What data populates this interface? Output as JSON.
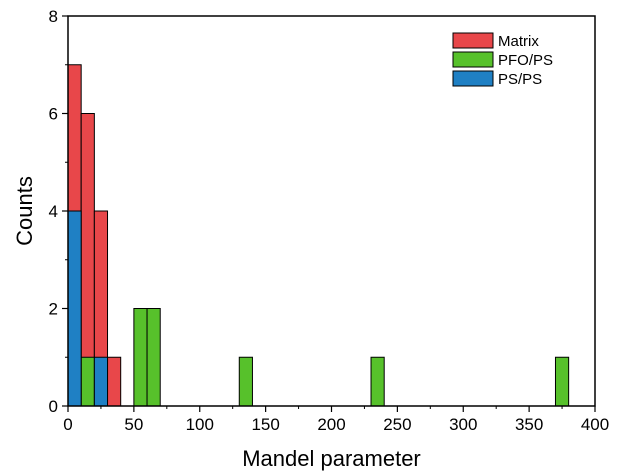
{
  "chart_data": {
    "type": "bar",
    "title": "",
    "xlabel": "Mandel parameter",
    "ylabel": "Counts",
    "xlim": [
      0,
      400
    ],
    "ylim": [
      0,
      8
    ],
    "x_ticks": [
      0,
      50,
      100,
      150,
      200,
      250,
      300,
      350,
      400
    ],
    "y_ticks": [
      0,
      2,
      4,
      6,
      8
    ],
    "bin_width": 10,
    "legend_position": "top-right",
    "grid": false,
    "series": [
      {
        "name": "Matrix",
        "color": "#e8474a",
        "bars": [
          {
            "x": 5,
            "value": 7
          },
          {
            "x": 15,
            "value": 6
          },
          {
            "x": 25,
            "value": 4
          },
          {
            "x": 35,
            "value": 1
          }
        ]
      },
      {
        "name": "PFO/PS",
        "color": "#57c12b",
        "bars": [
          {
            "x": 15,
            "value": 1
          },
          {
            "x": 55,
            "value": 2
          },
          {
            "x": 65,
            "value": 2
          },
          {
            "x": 135,
            "value": 1
          },
          {
            "x": 235,
            "value": 1
          },
          {
            "x": 375,
            "value": 1
          }
        ]
      },
      {
        "name": "PS/PS",
        "color": "#1f80c4",
        "bars": [
          {
            "x": 5,
            "value": 4
          },
          {
            "x": 25,
            "value": 1
          }
        ]
      }
    ]
  }
}
